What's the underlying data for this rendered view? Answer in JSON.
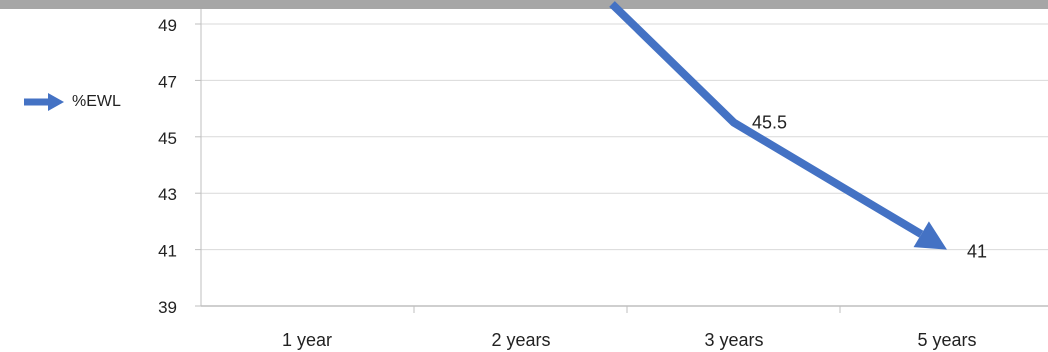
{
  "chart_data": {
    "type": "line",
    "title": "",
    "xlabel": "",
    "ylabel": "",
    "categories": [
      "1 year",
      "2 years",
      "3 years",
      "5 years"
    ],
    "series": [
      {
        "name": "%EWL",
        "values": [
          null,
          null,
          45.5,
          41
        ],
        "data_labels": [
          "",
          "",
          "45.5",
          "41"
        ]
      }
    ],
    "ylim": [
      39,
      49
    ],
    "yticks": [
      "39",
      "41",
      "43",
      "45",
      "47",
      "49"
    ],
    "grid": "horizontal",
    "legend_position": "left",
    "line_color": "#4472c4"
  }
}
